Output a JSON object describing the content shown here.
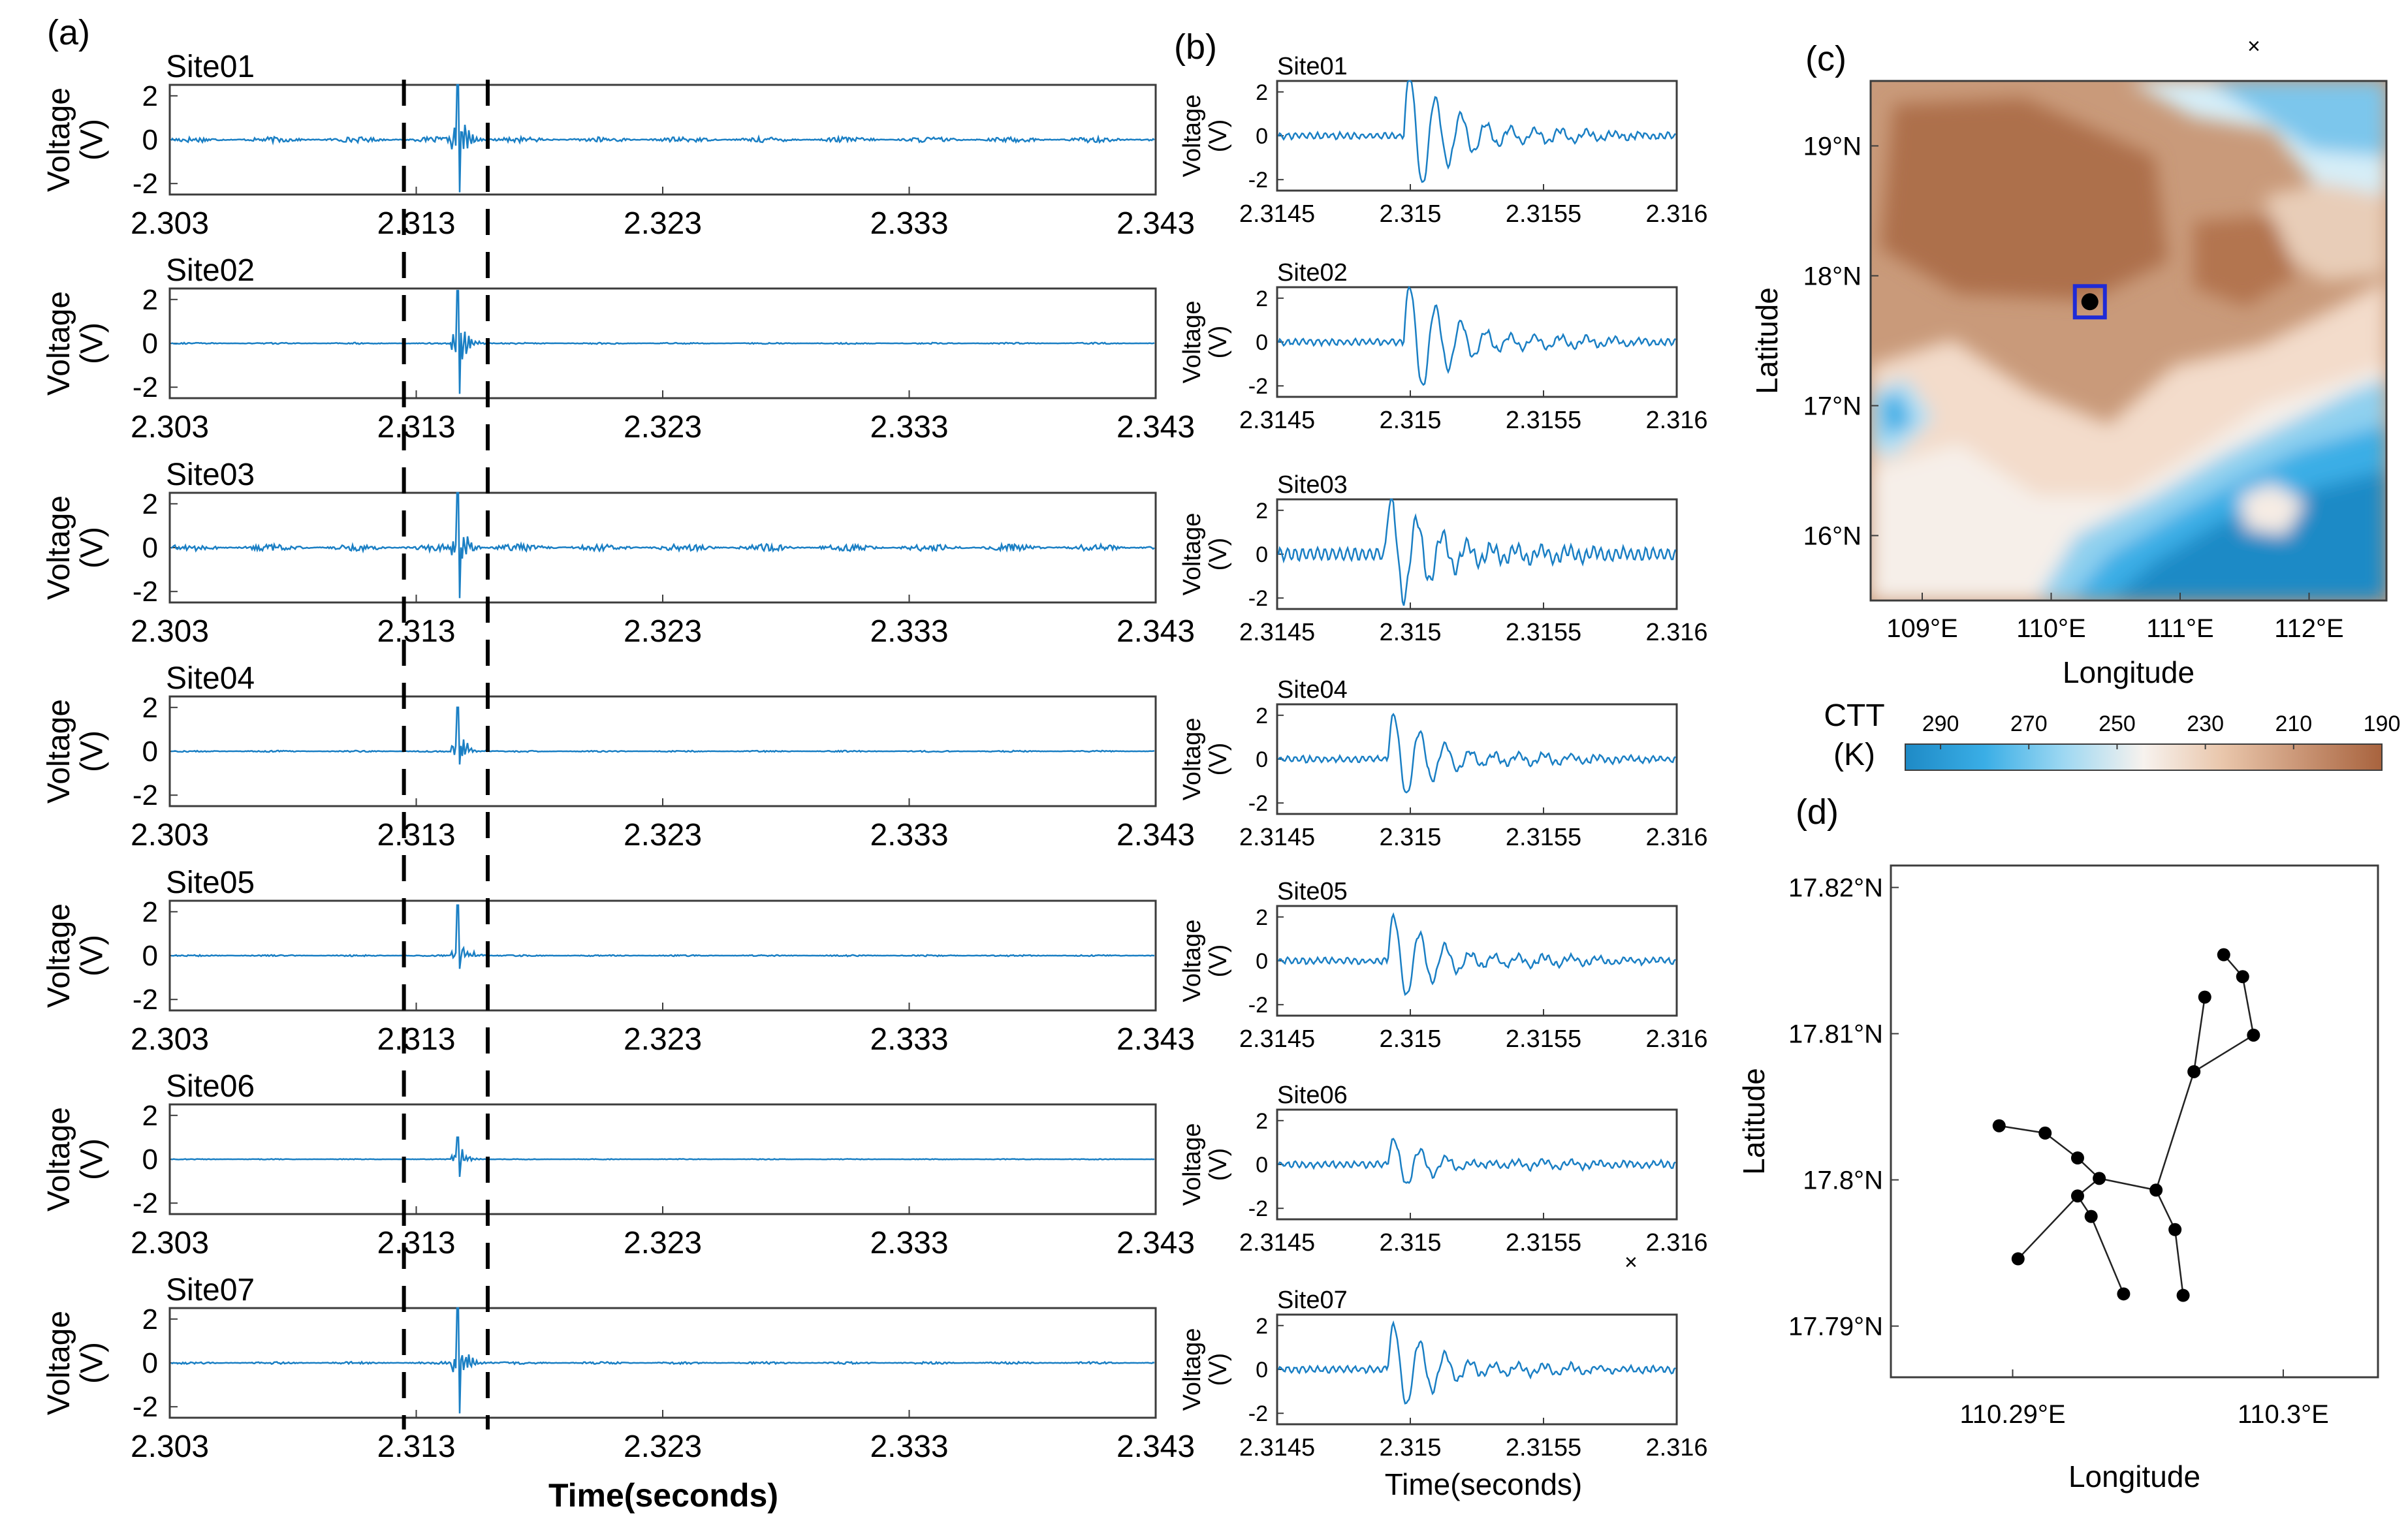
{
  "panel_labels": [
    "(a)",
    "(b)",
    "(c)",
    "(d)"
  ],
  "stray_marks": [
    "×",
    "×"
  ],
  "colors": {
    "trace": "#1a7fc4",
    "box": "#1f2bd6",
    "dot": "#000000"
  },
  "chart_data": [
    {
      "type": "line",
      "panel": "(a)",
      "xlabel": "Time(seconds)",
      "ylabel_lines": [
        "Voltage",
        "(V)"
      ],
      "xlim": [
        2.303,
        2.343
      ],
      "ylim": [
        -2.5,
        2.5
      ],
      "xticks": [
        "2.303",
        "2.313",
        "2.323",
        "2.333",
        "2.343"
      ],
      "yticks": [
        "2",
        "0",
        "-2"
      ],
      "markers": {
        "style": "dashed vertical lines",
        "x": [
          2.3125,
          2.3159
        ]
      },
      "series": [
        {
          "name": "Site01",
          "event_time": 2.3146,
          "peak": 2.6,
          "trough": -2.4,
          "noise": 0.07
        },
        {
          "name": "Site02",
          "event_time": 2.3146,
          "peak": 2.4,
          "trough": -2.3,
          "noise": 0.02
        },
        {
          "name": "Site03",
          "event_time": 2.3146,
          "peak": 2.5,
          "trough": -2.3,
          "noise": 0.09
        },
        {
          "name": "Site04",
          "event_time": 2.3146,
          "peak": 2.0,
          "trough": -0.6,
          "noise": 0.02
        },
        {
          "name": "Site05",
          "event_time": 2.3146,
          "peak": 2.3,
          "trough": -0.6,
          "noise": 0.02
        },
        {
          "name": "Site06",
          "event_time": 2.3146,
          "peak": 1.0,
          "trough": -0.8,
          "noise": 0.01
        },
        {
          "name": "Site07",
          "event_time": 2.3146,
          "peak": 2.6,
          "trough": -2.3,
          "noise": 0.03
        }
      ]
    },
    {
      "type": "line",
      "panel": "(b)",
      "xlabel": "Time(seconds)",
      "ylabel_lines": [
        "Voltage",
        "(V)"
      ],
      "xlim": [
        2.3145,
        2.316
      ],
      "ylim": [
        -2.5,
        2.5
      ],
      "xticks": [
        "2.3145",
        "2.315",
        "2.3155",
        "2.316"
      ],
      "yticks": [
        "2",
        "0",
        "-2"
      ],
      "series": [
        {
          "name": "Site01",
          "onset": 2.31497,
          "amp": 2.8
        },
        {
          "name": "Site02",
          "onset": 2.31497,
          "amp": 2.6
        },
        {
          "name": "Site03",
          "onset": 2.3149,
          "amp": 2.6
        },
        {
          "name": "Site04",
          "onset": 2.31491,
          "amp": 2.0
        },
        {
          "name": "Site05",
          "onset": 2.31491,
          "amp": 2.0
        },
        {
          "name": "Site06",
          "onset": 2.31491,
          "amp": 1.0
        },
        {
          "name": "Site07",
          "onset": 2.31491,
          "amp": 2.0
        }
      ]
    },
    {
      "type": "heatmap",
      "panel": "(c)",
      "xlabel": "Longitude",
      "ylabel": "Latitude",
      "xlim": [
        108.6,
        112.6
      ],
      "ylim": [
        15.5,
        19.5
      ],
      "xticks": [
        {
          "value": 109,
          "label": "109°E"
        },
        {
          "value": 110,
          "label": "110°E"
        },
        {
          "value": 111,
          "label": "111°E"
        },
        {
          "value": 112,
          "label": "112°E"
        }
      ],
      "yticks": [
        {
          "value": 16,
          "label": "16°N"
        },
        {
          "value": 17,
          "label": "17°N"
        },
        {
          "value": 18,
          "label": "18°N"
        },
        {
          "value": 19,
          "label": "19°N"
        }
      ],
      "marker": {
        "lon": 110.3,
        "lat": 17.8
      },
      "colorbar": {
        "label_lines": [
          "CTT",
          "(K)"
        ],
        "ticks": [
          "290",
          "270",
          "250",
          "230",
          "210",
          "190"
        ],
        "range": [
          298,
          190
        ],
        "stops": [
          "#1e8ac6",
          "#3aaee6",
          "#9ed8f2",
          "#f7f2ee",
          "#e9c6ab",
          "#c99474",
          "#a8633e"
        ]
      }
    },
    {
      "type": "scatter",
      "panel": "(d)",
      "xlabel": "Longitude",
      "ylabel": "Latitude",
      "xlim": [
        110.2855,
        110.3035
      ],
      "ylim": [
        17.7865,
        17.8215
      ],
      "xticks": [
        {
          "value": 110.29,
          "label": "110.29°E"
        },
        {
          "value": 110.3,
          "label": "110.3°E"
        }
      ],
      "yticks": [
        {
          "value": 17.82,
          "label": "17.82°N"
        },
        {
          "value": 17.81,
          "label": "17.81°N"
        },
        {
          "value": 17.8,
          "label": "17.8°N"
        },
        {
          "value": 17.79,
          "label": "17.79°N"
        }
      ],
      "points": [
        [
          110.2895,
          17.8037
        ],
        [
          110.2912,
          17.8032
        ],
        [
          110.2924,
          17.8015
        ],
        [
          110.2932,
          17.8001
        ],
        [
          110.2953,
          17.7993
        ],
        [
          110.2924,
          17.7989
        ],
        [
          110.2929,
          17.7975
        ],
        [
          110.2902,
          17.7946
        ],
        [
          110.2941,
          17.7922
        ],
        [
          110.296,
          17.7966
        ],
        [
          110.2963,
          17.7921
        ],
        [
          110.2967,
          17.8074
        ],
        [
          110.2971,
          17.8125
        ],
        [
          110.2989,
          17.8099
        ],
        [
          110.2985,
          17.8139
        ],
        [
          110.2978,
          17.8154
        ]
      ],
      "segments": [
        [
          0,
          1
        ],
        [
          1,
          2
        ],
        [
          2,
          3
        ],
        [
          3,
          4
        ],
        [
          4,
          11
        ],
        [
          11,
          12
        ],
        [
          11,
          13
        ],
        [
          13,
          14
        ],
        [
          14,
          15
        ],
        [
          3,
          5
        ],
        [
          5,
          7
        ],
        [
          5,
          6
        ],
        [
          6,
          8
        ],
        [
          4,
          9
        ],
        [
          9,
          10
        ]
      ]
    }
  ]
}
